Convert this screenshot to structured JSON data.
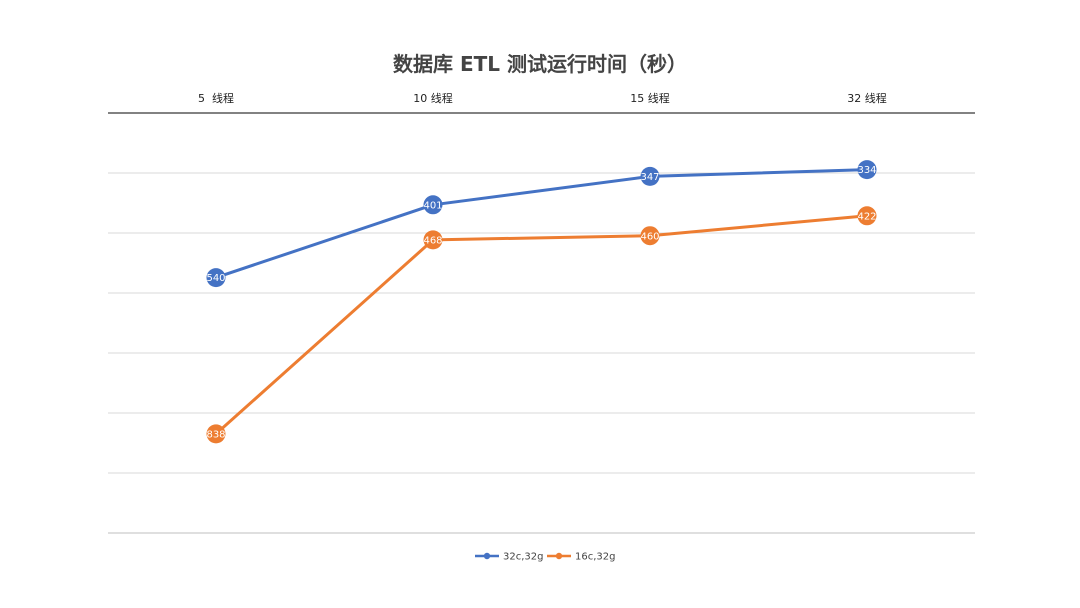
{
  "chart_data": {
    "type": "line",
    "title": "数据库 ETL 测试运行时间（秒）",
    "categories": [
      "5  线程",
      "10 线程",
      "15 线程",
      "32 线程"
    ],
    "x_axis_position": "top",
    "y_axis_reversed": true,
    "y_tick_labels_shown": false,
    "grid": true,
    "legend": "bottom",
    "series": [
      {
        "name": "32c,32g",
        "values": [
          540,
          401,
          347,
          334
        ],
        "color": "#4472C4"
      },
      {
        "name": "16c,32g",
        "values": [
          838,
          468,
          460,
          422
        ],
        "color": "#ED7D31"
      }
    ]
  }
}
